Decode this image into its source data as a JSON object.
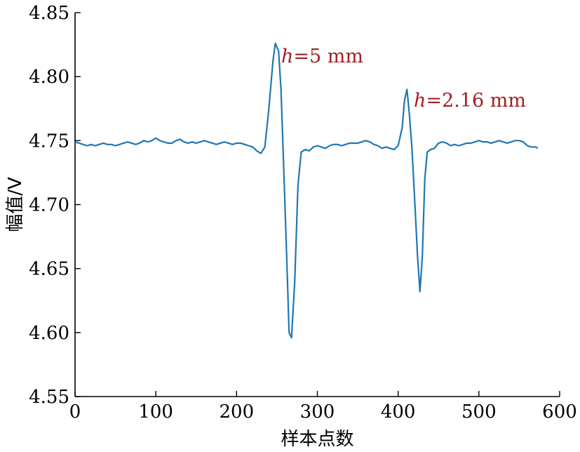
{
  "chart_data": {
    "type": "line",
    "title": "",
    "xlabel": "样本点数",
    "ylabel": "幅值/V",
    "xlim": [
      0,
      600
    ],
    "ylim": [
      4.55,
      4.85
    ],
    "xticks": [
      0,
      100,
      200,
      300,
      400,
      500,
      600
    ],
    "xtick_labels": [
      "0",
      "100",
      "200",
      "300",
      "400",
      "500",
      "600"
    ],
    "yticks": [
      4.55,
      4.6,
      4.65,
      4.7,
      4.75,
      4.8,
      4.85
    ],
    "ytick_labels": [
      "4.55",
      "4.60",
      "4.65",
      "4.70",
      "4.75",
      "4.80",
      "4.85"
    ],
    "grid": false,
    "legend": "none",
    "series": [
      {
        "color": "#1f77b4",
        "x": [
          0,
          5,
          10,
          15,
          20,
          25,
          30,
          35,
          40,
          45,
          50,
          55,
          60,
          65,
          70,
          75,
          80,
          85,
          90,
          95,
          100,
          105,
          110,
          115,
          120,
          125,
          130,
          135,
          140,
          145,
          150,
          155,
          160,
          165,
          170,
          175,
          180,
          185,
          190,
          195,
          200,
          205,
          210,
          215,
          220,
          225,
          230,
          235,
          240,
          245,
          248,
          252,
          255,
          258,
          262,
          265,
          268,
          272,
          276,
          280,
          285,
          290,
          295,
          300,
          305,
          310,
          315,
          320,
          325,
          330,
          335,
          340,
          345,
          350,
          355,
          360,
          365,
          370,
          375,
          380,
          385,
          390,
          395,
          400,
          405,
          408,
          411,
          414,
          417,
          420,
          424,
          427,
          430,
          433,
          436,
          440,
          445,
          450,
          455,
          460,
          465,
          470,
          475,
          480,
          485,
          490,
          495,
          500,
          505,
          510,
          515,
          520,
          525,
          530,
          535,
          540,
          545,
          550,
          555,
          560,
          565,
          570,
          573
        ],
        "y": [
          4.749,
          4.748,
          4.747,
          4.746,
          4.747,
          4.746,
          4.747,
          4.748,
          4.747,
          4.747,
          4.746,
          4.747,
          4.748,
          4.749,
          4.748,
          4.747,
          4.748,
          4.75,
          4.749,
          4.75,
          4.752,
          4.75,
          4.749,
          4.748,
          4.748,
          4.75,
          4.751,
          4.749,
          4.748,
          4.749,
          4.748,
          4.749,
          4.75,
          4.749,
          4.748,
          4.747,
          4.748,
          4.749,
          4.748,
          4.747,
          4.748,
          4.748,
          4.747,
          4.746,
          4.745,
          4.742,
          4.74,
          4.745,
          4.775,
          4.812,
          4.826,
          4.82,
          4.79,
          4.735,
          4.66,
          4.6,
          4.596,
          4.64,
          4.715,
          4.741,
          4.743,
          4.742,
          4.745,
          4.746,
          4.745,
          4.744,
          4.746,
          4.747,
          4.747,
          4.746,
          4.747,
          4.748,
          4.748,
          4.748,
          4.749,
          4.75,
          4.749,
          4.747,
          4.746,
          4.744,
          4.745,
          4.744,
          4.743,
          4.746,
          4.76,
          4.782,
          4.79,
          4.77,
          4.745,
          4.71,
          4.66,
          4.632,
          4.66,
          4.72,
          4.741,
          4.743,
          4.744,
          4.748,
          4.749,
          4.748,
          4.746,
          4.747,
          4.746,
          4.747,
          4.748,
          4.748,
          4.749,
          4.75,
          4.749,
          4.749,
          4.748,
          4.749,
          4.75,
          4.749,
          4.748,
          4.749,
          4.75,
          4.75,
          4.749,
          4.746,
          4.745,
          4.745,
          4.744
        ]
      }
    ],
    "annotations": [
      {
        "italic": "h",
        "rest": "=5 mm",
        "color": "#a31f24"
      },
      {
        "italic": "h",
        "rest": "=2.16 mm",
        "color": "#a31f24"
      }
    ]
  }
}
